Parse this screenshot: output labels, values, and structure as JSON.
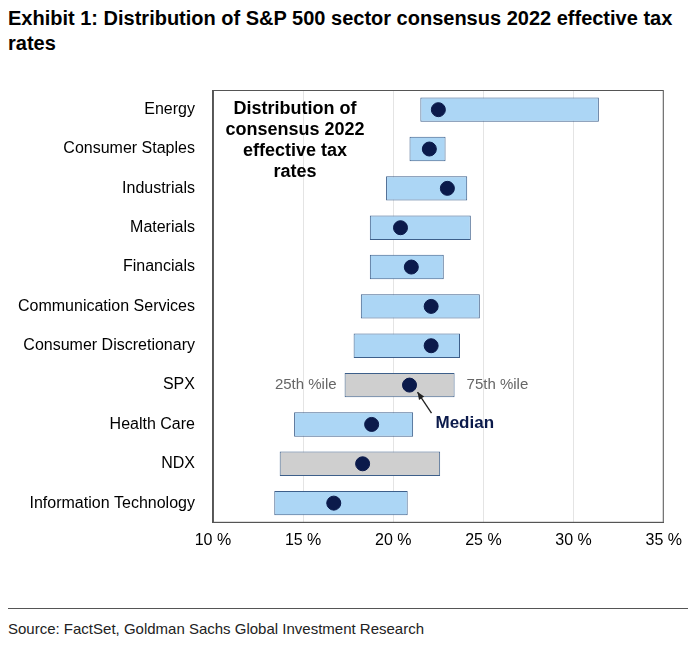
{
  "chart_data": {
    "type": "bar",
    "orientation": "horizontal",
    "title": "Exhibit 1: Distribution of S&P 500 sector consensus 2022 effective tax rates",
    "source": "Source: FactSet, Goldman Sachs Global Investment Research",
    "annotations": [
      {
        "text": "Distribution of consensus 2022 effective tax rates"
      }
    ],
    "series_labels_at": "SPX",
    "categories": [
      "Energy",
      "Consumer Staples",
      "Industrials",
      "Materials",
      "Financials",
      "Communication Services",
      "Consumer Discretionary",
      "SPX",
      "Health Care",
      "NDX",
      "Information Technology"
    ],
    "colors": [
      "#acd6f5",
      "#acd6f5",
      "#acd6f5",
      "#acd6f5",
      "#acd6f5",
      "#acd6f5",
      "#acd6f5",
      "#cfcfcf",
      "#acd6f5",
      "#cfcfcf",
      "#acd6f5"
    ],
    "series": [
      {
        "name": "25th %ile",
        "values": [
          21.5,
          20.9,
          19.6,
          18.7,
          18.7,
          18.2,
          17.8,
          17.3,
          14.5,
          13.7,
          13.4
        ]
      },
      {
        "name": "75th %ile",
        "values": [
          31.4,
          22.9,
          24.1,
          24.3,
          22.8,
          24.8,
          23.7,
          23.4,
          21.1,
          22.6,
          20.8
        ]
      },
      {
        "name": "Median",
        "values": [
          22.5,
          22.0,
          23.0,
          20.4,
          21.0,
          22.1,
          22.1,
          20.9,
          18.8,
          18.3,
          16.7
        ],
        "color": "#0b1a4b",
        "marker": "circle"
      }
    ],
    "xlim": [
      10,
      35
    ],
    "xticks": [
      {
        "value": 10,
        "label": "10 %"
      },
      {
        "value": 15,
        "label": "15 %"
      },
      {
        "value": 20,
        "label": "20 %"
      },
      {
        "value": 25,
        "label": "25 %"
      },
      {
        "value": 30,
        "label": "30 %"
      },
      {
        "value": 35,
        "label": "35 %"
      }
    ],
    "grid": true
  }
}
